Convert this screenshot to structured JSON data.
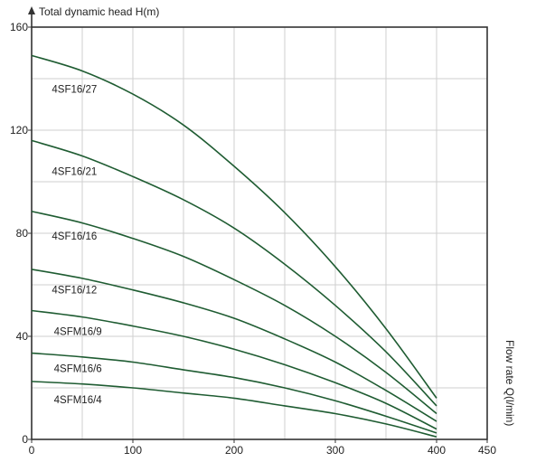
{
  "chart_data": {
    "type": "line",
    "xlabel": "Flow rate Q(l/min)",
    "ylabel": "Total dynamic head H(m)",
    "xlim": [
      0,
      450
    ],
    "ylim": [
      0,
      160
    ],
    "x_ticks": [
      0,
      100,
      200,
      300,
      400,
      450
    ],
    "y_ticks": [
      0,
      40,
      80,
      120,
      160
    ],
    "grid": true,
    "legend": "inline labels",
    "line_color": "#1f5c32",
    "series": [
      {
        "name": "4SF16/27",
        "x": [
          0,
          50,
          100,
          150,
          200,
          250,
          300,
          350,
          400
        ],
        "values": [
          149,
          143,
          134,
          122,
          106,
          88,
          67,
          43,
          16
        ]
      },
      {
        "name": "4SF16/21",
        "x": [
          0,
          50,
          100,
          150,
          200,
          250,
          300,
          350,
          400
        ],
        "values": [
          116,
          110,
          102,
          93,
          82,
          68,
          52,
          34,
          13
        ]
      },
      {
        "name": "4SF16/16",
        "x": [
          0,
          50,
          100,
          150,
          200,
          250,
          300,
          350,
          400
        ],
        "values": [
          88.5,
          84,
          78,
          71,
          62,
          52,
          40,
          26,
          10
        ]
      },
      {
        "name": "4SF16/12",
        "x": [
          0,
          50,
          100,
          150,
          200,
          250,
          300,
          350,
          400
        ],
        "values": [
          66,
          62.5,
          58,
          53,
          47,
          39,
          30,
          19,
          7
        ]
      },
      {
        "name": "4SFM16/9",
        "x": [
          0,
          50,
          100,
          150,
          200,
          250,
          300,
          350,
          400
        ],
        "values": [
          50,
          47.5,
          44,
          40,
          35,
          29,
          22,
          14,
          4
        ]
      },
      {
        "name": "4SFM16/6",
        "x": [
          0,
          50,
          100,
          150,
          200,
          250,
          300,
          350,
          400
        ],
        "values": [
          33.5,
          32,
          30,
          27,
          24,
          20,
          15,
          9,
          2.5
        ]
      },
      {
        "name": "4SFM16/4",
        "x": [
          0,
          50,
          100,
          150,
          200,
          250,
          300,
          350,
          400
        ],
        "values": [
          22.5,
          21.5,
          20,
          18,
          16,
          13,
          10,
          6,
          1
        ]
      }
    ],
    "label_positions": [
      {
        "x": 20,
        "y": 136
      },
      {
        "x": 20,
        "y": 104
      },
      {
        "x": 20,
        "y": 79
      },
      {
        "x": 20,
        "y": 58
      },
      {
        "x": 22,
        "y": 42
      },
      {
        "x": 22,
        "y": 27.5
      },
      {
        "x": 22,
        "y": 15.5
      }
    ]
  }
}
